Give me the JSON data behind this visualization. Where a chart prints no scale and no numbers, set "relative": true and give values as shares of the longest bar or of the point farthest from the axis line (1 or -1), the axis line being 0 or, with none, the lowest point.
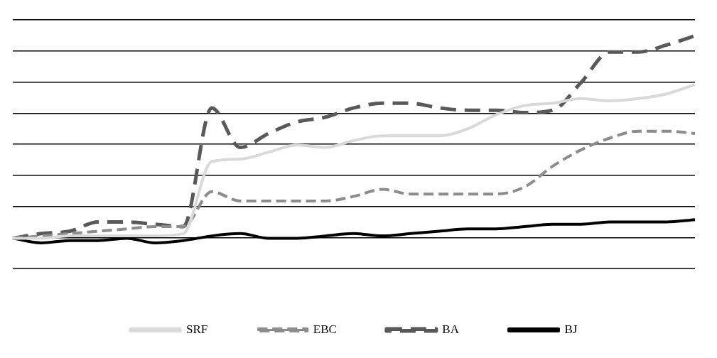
{
  "chart_data": {
    "type": "line",
    "relative": true,
    "categories": [
      null,
      null,
      null,
      null,
      null,
      null,
      null,
      null,
      null,
      null,
      null,
      null,
      null,
      null,
      null,
      null,
      null,
      null,
      null,
      null,
      null,
      null,
      null,
      null,
      null
    ],
    "series": [
      {
        "name": "SRF",
        "color": "#d9d9d9",
        "line_style": "solid",
        "values": [
          0.13,
          0.13,
          0.14,
          0.14,
          0.14,
          0.14,
          0.15,
          0.46,
          0.47,
          0.5,
          0.53,
          0.52,
          0.55,
          0.57,
          0.57,
          0.57,
          0.6,
          0.66,
          0.7,
          0.71,
          0.73,
          0.72,
          0.73,
          0.75,
          0.79
        ]
      },
      {
        "name": "EBC",
        "color": "#8c8c8c",
        "line_style": "dashed",
        "values": [
          0.13,
          0.14,
          0.15,
          0.16,
          0.17,
          0.18,
          0.18,
          0.33,
          0.29,
          0.29,
          0.29,
          0.29,
          0.31,
          0.34,
          0.32,
          0.32,
          0.32,
          0.32,
          0.35,
          0.44,
          0.51,
          0.56,
          0.59,
          0.59,
          0.58
        ]
      },
      {
        "name": "BA",
        "color": "#595959",
        "line_style": "dashed",
        "values": [
          0.13,
          0.15,
          0.16,
          0.2,
          0.2,
          0.19,
          0.18,
          0.69,
          0.52,
          0.58,
          0.63,
          0.65,
          0.69,
          0.71,
          0.71,
          0.69,
          0.68,
          0.68,
          0.67,
          0.68,
          0.8,
          0.93,
          0.93,
          0.96,
          1
        ]
      },
      {
        "name": "BJ",
        "color": "#000000",
        "line_style": "solid",
        "values": [
          0.13,
          0.11,
          0.12,
          0.12,
          0.13,
          0.11,
          0.12,
          0.14,
          0.15,
          0.13,
          0.13,
          0.14,
          0.15,
          0.14,
          0.15,
          0.16,
          0.17,
          0.17,
          0.18,
          0.19,
          0.19,
          0.2,
          0.2,
          0.2,
          0.21
        ]
      }
    ],
    "grid": "y",
    "legend": "bottom",
    "marker": "none"
  }
}
